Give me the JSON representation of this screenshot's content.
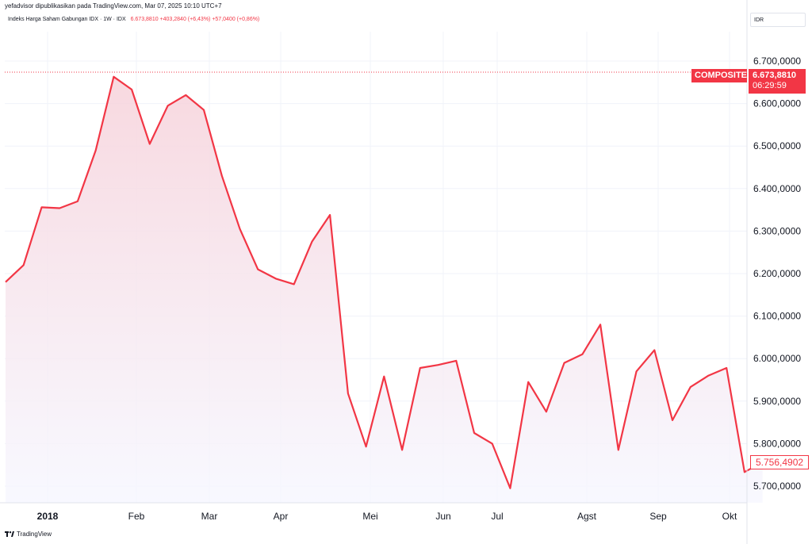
{
  "header": {
    "published_text": "yefadvisor dipublikasikan pada TradingView.com, Mar 07, 2025 10:10 UTC+7"
  },
  "symbol": {
    "name": "Indeks Harga Saham Gabungan IDX · 1W · IDX",
    "values": "6.673,8810  +403,2840 (+6,43%)  +57,0400 (+0,86%)"
  },
  "currency": "IDR",
  "footer": {
    "brand": "TradingView"
  },
  "badges": {
    "composite_label": "COMPOSITE",
    "current_price": "6.673,8810",
    "countdown": "06:29:59",
    "last_value": "5.756,4902"
  },
  "colors": {
    "line": "#f23645",
    "fill_top": "#f7d4dc",
    "fill_bottom": "#f6f7ff",
    "grid": "#f0f3fa"
  },
  "chart_data": {
    "type": "area",
    "title": "Indeks Harga Saham Gabungan IDX · 1W · IDX",
    "xlabel": "",
    "ylabel": "",
    "ylim": [
      5.64,
      6.78
    ],
    "y_ticks": [
      "6.700,0000",
      "6.600,0000",
      "6.500,0000",
      "6.400,0000",
      "6.300,0000",
      "6.200,0000",
      "6.100,0000",
      "6.000,0000",
      "5.900,0000",
      "5.800,0000",
      "5.700,0000"
    ],
    "x_tick_labels": [
      "2018",
      "Feb",
      "Mar",
      "Apr",
      "Mei",
      "Jun",
      "Jul",
      "Agst",
      "Sep",
      "Okt"
    ],
    "grid": true,
    "current_price_line": 6673.881,
    "series": [
      {
        "values": [
          6180,
          6220,
          6356,
          6354,
          6370,
          6490,
          6663,
          6633,
          6505,
          6595,
          6620,
          6585,
          6430,
          6305,
          6210,
          6188,
          6175,
          6275,
          6338,
          5918,
          5793,
          5958,
          5785,
          5978,
          5985,
          5995,
          5825,
          5800,
          5695,
          5945,
          5875,
          5990,
          6010,
          6080,
          5785,
          5970,
          6020,
          5855,
          5933,
          5960,
          5978,
          5733,
          5756.49
        ]
      }
    ]
  }
}
